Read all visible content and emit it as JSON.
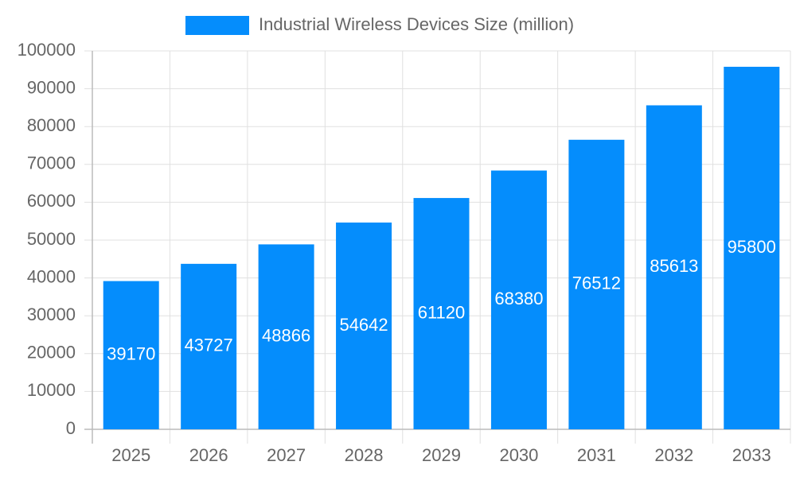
{
  "chart_data": {
    "type": "bar",
    "categories": [
      "2025",
      "2026",
      "2027",
      "2028",
      "2029",
      "2030",
      "2031",
      "2032",
      "2033"
    ],
    "series": [
      {
        "name": "Industrial Wireless Devices Size (million)",
        "color": "#058dfc",
        "values": [
          39170,
          43727,
          48866,
          54642,
          61120,
          68380,
          76512,
          85613,
          95800
        ]
      }
    ],
    "ylim": [
      0,
      100000
    ],
    "yticks": [
      0,
      10000,
      20000,
      30000,
      40000,
      50000,
      60000,
      70000,
      80000,
      90000,
      100000
    ],
    "grid": true,
    "legend": "top",
    "data_labels": true
  }
}
